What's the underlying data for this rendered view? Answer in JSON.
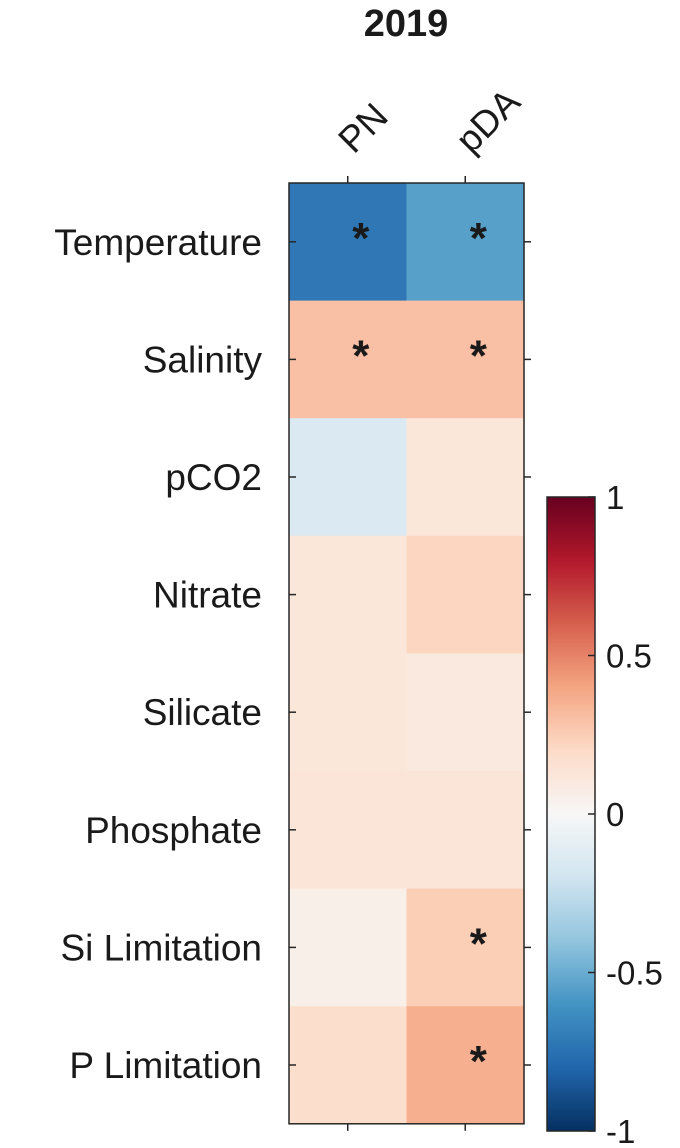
{
  "chart_data": {
    "type": "heatmap",
    "title": "2019",
    "columns": [
      "PN",
      "pDA"
    ],
    "rows": [
      "Temperature",
      "Salinity",
      "pCO2",
      "Nitrate",
      "Silicate",
      "Phosphate",
      "Si Limitation",
      "P Limitation"
    ],
    "values": [
      [
        -0.72,
        -0.55
      ],
      [
        0.3,
        0.3
      ],
      [
        -0.15,
        0.12
      ],
      [
        0.12,
        0.22
      ],
      [
        0.12,
        0.1
      ],
      [
        0.13,
        0.13
      ],
      [
        0.06,
        0.25
      ],
      [
        0.18,
        0.36
      ]
    ],
    "significant": [
      [
        true,
        true
      ],
      [
        true,
        true
      ],
      [
        false,
        false
      ],
      [
        false,
        false
      ],
      [
        false,
        false
      ],
      [
        false,
        false
      ],
      [
        false,
        true
      ],
      [
        false,
        true
      ]
    ],
    "significance_marker": "*",
    "colorbar": {
      "min": -1,
      "max": 1,
      "ticks": [
        1,
        0.5,
        0,
        -0.5,
        -1
      ],
      "tick_labels": [
        "1",
        "0.5",
        "0",
        "-0.5",
        "-1"
      ],
      "colormap": [
        "#053061",
        "#2166ac",
        "#4393c3",
        "#92c5de",
        "#d1e5f0",
        "#f7f7f7",
        "#fddbc7",
        "#f4a582",
        "#d6604d",
        "#b2182b",
        "#67001f"
      ]
    }
  }
}
